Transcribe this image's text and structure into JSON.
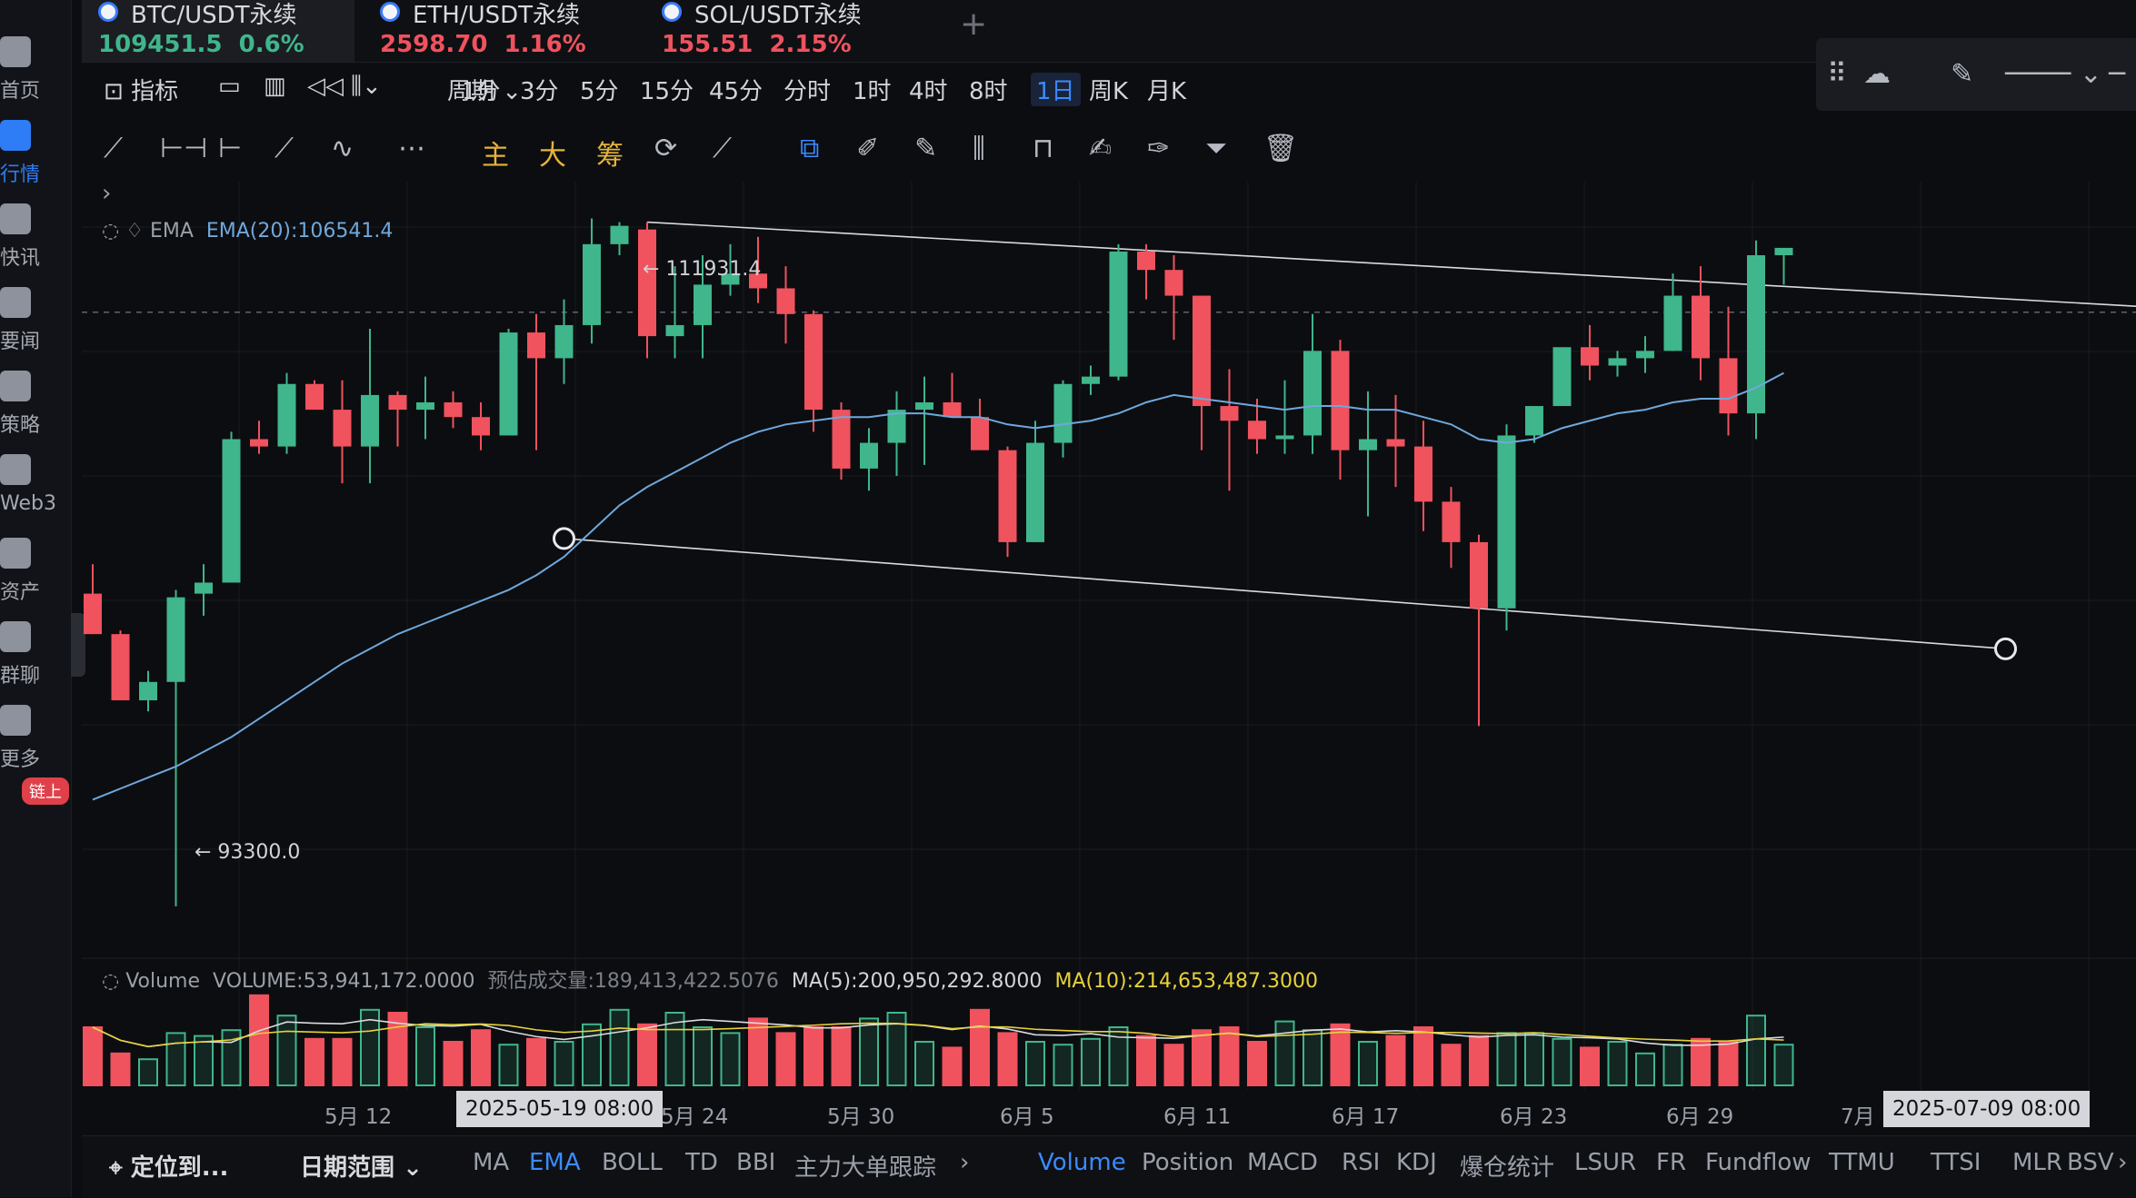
{
  "nav": {
    "items": [
      {
        "label": "首页",
        "active": false
      },
      {
        "label": "行情",
        "active": true
      },
      {
        "label": "快讯",
        "active": false
      },
      {
        "label": "要闻",
        "active": false
      },
      {
        "label": "策略",
        "active": false
      },
      {
        "label": "Web3",
        "active": false
      },
      {
        "label": "资产",
        "active": false
      },
      {
        "label": "群聊",
        "active": false
      },
      {
        "label": "更多",
        "active": false
      }
    ],
    "badge": "链上"
  },
  "tabs": [
    {
      "symbol": "BTC/USDT永续",
      "price": "109451.5",
      "change": "0.6%",
      "trend": "up",
      "active": true
    },
    {
      "symbol": "ETH/USDT永续",
      "price": "2598.70",
      "change": "1.16%",
      "trend": "down",
      "active": false
    },
    {
      "symbol": "SOL/USDT永续",
      "price": "155.51",
      "change": "2.15%",
      "trend": "down",
      "active": false
    }
  ],
  "toolbar": {
    "indicator_label": "指标",
    "period_label": "周期",
    "periods": [
      "1分",
      "3分",
      "5分",
      "15分",
      "45分",
      "分时",
      "1时",
      "4时",
      "8时",
      "1日",
      "周K",
      "月K"
    ],
    "active_period": "1日"
  },
  "drawing_tools": {
    "main": "主",
    "big": "大",
    "chips": "筹"
  },
  "ema_legend": {
    "name": "EMA",
    "value": "EMA(20):106541.4"
  },
  "annotations": {
    "high": "← 111931.4",
    "low": "← 93300.0"
  },
  "volume_legend": {
    "name": "Volume",
    "volume": "VOLUME:53,941,172.0000",
    "estimate": "预估成交量:189,413,422.5076",
    "ma5": "MA(5):200,950,292.8000",
    "ma10": "MA(10):214,653,487.3000"
  },
  "x_axis": {
    "labels": [
      "5月 12",
      "5月 24",
      "5月 30",
      "6月 5",
      "6月 11",
      "6月 17",
      "6月 23",
      "6月 29",
      "7月"
    ],
    "crosshair_left": "2025-05-19 08:00",
    "crosshair_right": "2025-07-09 08:00"
  },
  "bottom_bar": {
    "locate": "定位到...",
    "date_range": "日期范围",
    "main_indicators": [
      "MA",
      "EMA",
      "BOLL",
      "TD",
      "BBI",
      "主力大单跟踪"
    ],
    "active_main": "EMA",
    "sub_indicators": [
      "Volume",
      "Position",
      "MACD",
      "RSI",
      "KDJ",
      "爆仓统计",
      "LSUR",
      "FR",
      "Fundflow",
      "TTMU",
      "TTSI",
      "MLR",
      "BSV"
    ],
    "active_sub": "Volume"
  },
  "colors": {
    "up": "#3fb68b",
    "down": "#f0525e",
    "accent": "#3a8bff",
    "ema": "#6fa8dc",
    "ma10": "#e6d23a"
  },
  "chart_data": {
    "type": "candlestick",
    "candles": [
      {
        "o": 101800,
        "h": 102600,
        "l": 100700,
        "c": 100700
      },
      {
        "o": 100700,
        "h": 100800,
        "l": 98900,
        "c": 98900
      },
      {
        "o": 98900,
        "h": 99700,
        "l": 98600,
        "c": 99400
      },
      {
        "o": 99400,
        "h": 101900,
        "l": 93300,
        "c": 101700
      },
      {
        "o": 101800,
        "h": 102600,
        "l": 101200,
        "c": 102100
      },
      {
        "o": 102100,
        "h": 106200,
        "l": 102100,
        "c": 106000
      },
      {
        "o": 106000,
        "h": 106500,
        "l": 105600,
        "c": 105800
      },
      {
        "o": 105800,
        "h": 107800,
        "l": 105600,
        "c": 107500
      },
      {
        "o": 107500,
        "h": 107600,
        "l": 106900,
        "c": 106800
      },
      {
        "o": 106800,
        "h": 107600,
        "l": 104800,
        "c": 105800
      },
      {
        "o": 105800,
        "h": 109000,
        "l": 104800,
        "c": 107200
      },
      {
        "o": 107200,
        "h": 107300,
        "l": 105800,
        "c": 106800
      },
      {
        "o": 106800,
        "h": 107700,
        "l": 106000,
        "c": 107000
      },
      {
        "o": 107000,
        "h": 107300,
        "l": 106300,
        "c": 106600
      },
      {
        "o": 106600,
        "h": 107000,
        "l": 105700,
        "c": 106100
      },
      {
        "o": 106100,
        "h": 109000,
        "l": 106100,
        "c": 108900
      },
      {
        "o": 108900,
        "h": 109400,
        "l": 105700,
        "c": 108200
      },
      {
        "o": 108200,
        "h": 109800,
        "l": 107500,
        "c": 109100
      },
      {
        "o": 109100,
        "h": 112000,
        "l": 108600,
        "c": 111300
      },
      {
        "o": 111300,
        "h": 111900,
        "l": 111000,
        "c": 111800
      },
      {
        "o": 111700,
        "h": 111900,
        "l": 108200,
        "c": 108800
      },
      {
        "o": 108800,
        "h": 110700,
        "l": 108200,
        "c": 109100
      },
      {
        "o": 109100,
        "h": 111000,
        "l": 108200,
        "c": 110200
      },
      {
        "o": 110200,
        "h": 111300,
        "l": 109900,
        "c": 110500
      },
      {
        "o": 110500,
        "h": 111500,
        "l": 109700,
        "c": 110100
      },
      {
        "o": 110100,
        "h": 110700,
        "l": 108600,
        "c": 109400
      },
      {
        "o": 109400,
        "h": 109500,
        "l": 106200,
        "c": 106800
      },
      {
        "o": 106800,
        "h": 107000,
        "l": 104900,
        "c": 105200
      },
      {
        "o": 105200,
        "h": 106300,
        "l": 104600,
        "c": 105900
      },
      {
        "o": 105900,
        "h": 107300,
        "l": 105000,
        "c": 106800
      },
      {
        "o": 106800,
        "h": 107700,
        "l": 105300,
        "c": 107000
      },
      {
        "o": 107000,
        "h": 107800,
        "l": 106600,
        "c": 106600
      },
      {
        "o": 106600,
        "h": 107100,
        "l": 105800,
        "c": 105700
      },
      {
        "o": 105700,
        "h": 105800,
        "l": 102800,
        "c": 103200
      },
      {
        "o": 103200,
        "h": 106500,
        "l": 103200,
        "c": 105900
      },
      {
        "o": 105900,
        "h": 107600,
        "l": 105500,
        "c": 107500
      },
      {
        "o": 107500,
        "h": 108000,
        "l": 107200,
        "c": 107700
      },
      {
        "o": 107700,
        "h": 111300,
        "l": 107600,
        "c": 111100
      },
      {
        "o": 111100,
        "h": 111300,
        "l": 109800,
        "c": 110600
      },
      {
        "o": 110600,
        "h": 111000,
        "l": 108700,
        "c": 109900
      },
      {
        "o": 109900,
        "h": 109900,
        "l": 105700,
        "c": 106900
      },
      {
        "o": 106900,
        "h": 107900,
        "l": 104600,
        "c": 106500
      },
      {
        "o": 106500,
        "h": 107100,
        "l": 105600,
        "c": 106000
      },
      {
        "o": 106000,
        "h": 107600,
        "l": 105600,
        "c": 106100
      },
      {
        "o": 106100,
        "h": 109400,
        "l": 105600,
        "c": 108400
      },
      {
        "o": 108400,
        "h": 108700,
        "l": 104900,
        "c": 105700
      },
      {
        "o": 105700,
        "h": 107300,
        "l": 103900,
        "c": 106000
      },
      {
        "o": 106000,
        "h": 107200,
        "l": 104700,
        "c": 105800
      },
      {
        "o": 105800,
        "h": 106500,
        "l": 103500,
        "c": 104300
      },
      {
        "o": 104300,
        "h": 104700,
        "l": 102500,
        "c": 103200
      },
      {
        "o": 103200,
        "h": 103400,
        "l": 98200,
        "c": 101400
      },
      {
        "o": 101400,
        "h": 106400,
        "l": 100800,
        "c": 106100
      },
      {
        "o": 106100,
        "h": 106800,
        "l": 105900,
        "c": 106900
      },
      {
        "o": 106900,
        "h": 108300,
        "l": 106900,
        "c": 108500
      },
      {
        "o": 108500,
        "h": 109100,
        "l": 107600,
        "c": 108000
      },
      {
        "o": 108000,
        "h": 108400,
        "l": 107700,
        "c": 108200
      },
      {
        "o": 108200,
        "h": 108800,
        "l": 107800,
        "c": 108400
      },
      {
        "o": 108400,
        "h": 110500,
        "l": 108400,
        "c": 109900
      },
      {
        "o": 109900,
        "h": 110700,
        "l": 107600,
        "c": 108200
      },
      {
        "o": 108200,
        "h": 109600,
        "l": 106100,
        "c": 106700
      },
      {
        "o": 106700,
        "h": 111400,
        "l": 106000,
        "c": 111000
      },
      {
        "o": 111000,
        "h": 111200,
        "l": 110200,
        "c": 111200
      }
    ],
    "ema20": [
      96200,
      96500,
      96800,
      97100,
      97500,
      97900,
      98400,
      98900,
      99400,
      99900,
      100300,
      100700,
      101000,
      101300,
      101600,
      101900,
      102300,
      102800,
      103500,
      104200,
      104700,
      105100,
      105500,
      105900,
      106200,
      106400,
      106500,
      106600,
      106600,
      106700,
      106700,
      106600,
      106600,
      106400,
      106300,
      106400,
      106500,
      106700,
      107000,
      107200,
      107100,
      107000,
      106900,
      106800,
      106900,
      106900,
      106800,
      106800,
      106600,
      106400,
      106000,
      105900,
      106000,
      106300,
      106500,
      106700,
      106800,
      107000,
      107100,
      107100,
      107400,
      107800
    ],
    "volume": [
      40,
      22,
      18,
      36,
      34,
      38,
      62,
      48,
      32,
      32,
      52,
      50,
      40,
      30,
      38,
      28,
      32,
      30,
      42,
      52,
      42,
      50,
      40,
      36,
      46,
      36,
      40,
      40,
      46,
      50,
      30,
      26,
      52,
      36,
      30,
      28,
      32,
      40,
      34,
      28,
      38,
      40,
      30,
      44,
      38,
      42,
      30,
      34,
      40,
      28,
      34,
      36,
      36,
      32,
      26,
      30,
      22,
      28,
      32,
      30,
      48,
      28
    ],
    "ylim": [
      93000,
      113000
    ],
    "high": 111931.4,
    "low": 93300.0,
    "current": 109451.5,
    "trendlines": [
      {
        "from_index": 20,
        "from_value": 111900,
        "to_index": 74,
        "to_value": 109600
      },
      {
        "from_index": 17,
        "from_value": 103300,
        "to_index": 69,
        "to_value": 100300
      }
    ]
  }
}
